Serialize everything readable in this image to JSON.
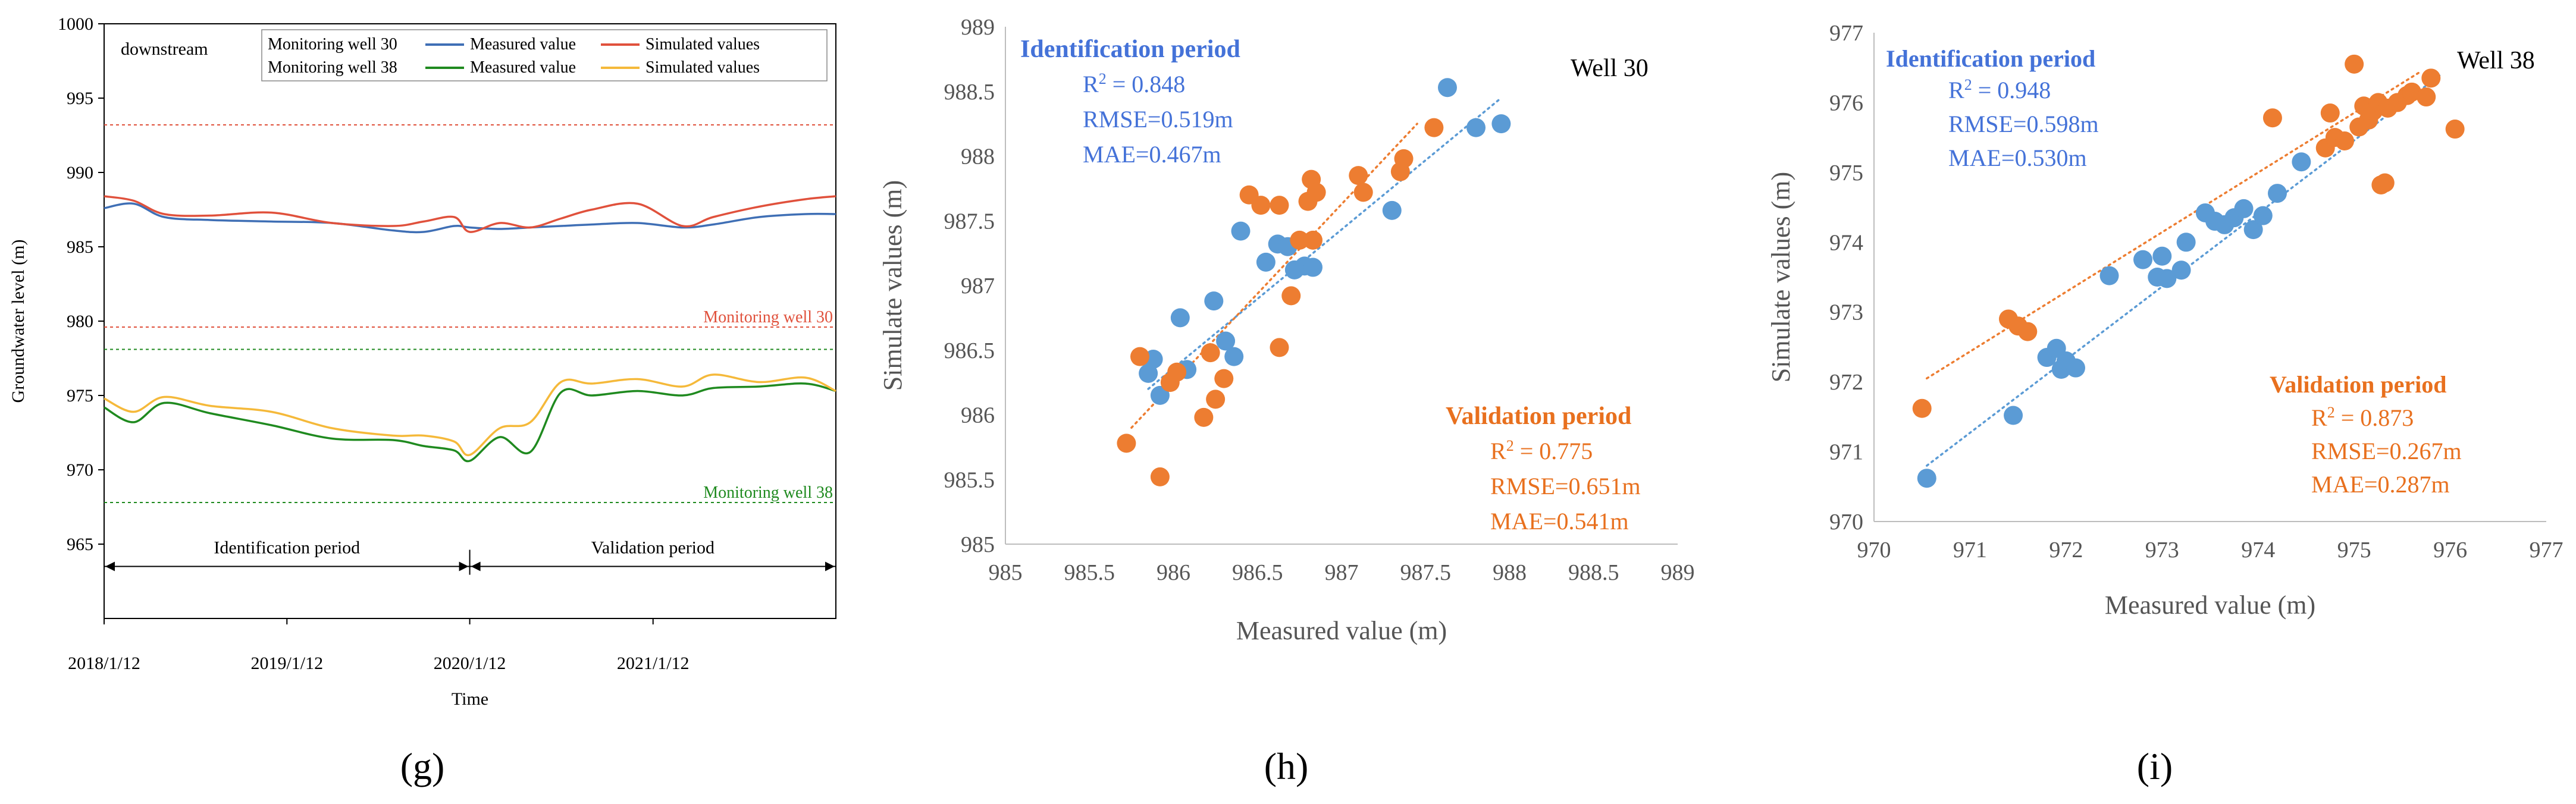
{
  "colors": {
    "measured_blue": "#3f6fb5",
    "simulated_red": "#e0513c",
    "measured_green": "#1f8a1f",
    "simulated_yellow": "#f5b93a",
    "ident_blue_text": "#4472d8",
    "valid_orange_text": "#e8701e",
    "scatter_blue": "#5b9bd5",
    "scatter_orange": "#ed7d31"
  },
  "panel_labels": [
    "(g)",
    "(h)",
    "(i)"
  ],
  "chart_data": [
    {
      "type": "line",
      "panel": "g",
      "xlabel": "Time",
      "ylabel": "Groundwater level (m)",
      "ylim": [
        960,
        1000
      ],
      "yticks": [
        "965",
        "970",
        "975",
        "980",
        "985",
        "990",
        "995",
        "1000"
      ],
      "xticks": [
        "2018/1/12",
        "2019/1/12",
        "2020/1/12",
        "2021/1/12"
      ],
      "xrange": [
        "2018/1/12",
        "2022/1/12"
      ],
      "grid": false,
      "annotation_downstream": "downstream",
      "legend": {
        "row1_label": "Monitoring well 30",
        "row2_label": "Monitoring well 38",
        "measured": "Measured value",
        "simulated": "Simulated values"
      },
      "reference_lines": [
        {
          "y": 993.2,
          "color": "#e0513c"
        },
        {
          "y": 979.6,
          "color": "#e0513c",
          "label": "Monitoring well 30"
        },
        {
          "y": 978.1,
          "color": "#1f8a1f"
        },
        {
          "y": 967.8,
          "color": "#1f8a1f",
          "label": "Monitoring well 38"
        }
      ],
      "periods": {
        "identification": "Identification period",
        "validation": "Validation period",
        "split_date": "2020/1/12",
        "arrow_y": 963.5
      },
      "series": [
        {
          "name": "Monitoring well 30 Measured value",
          "color": "#3f6fb5",
          "x": [
            "2018/1/12",
            "2018/3/12",
            "2018/5/12",
            "2018/8/12",
            "2018/12/12",
            "2019/4/12",
            "2019/8/12",
            "2019/10/12",
            "2019/12/12",
            "2020/1/12",
            "2020/3/12",
            "2020/5/12",
            "2020/7/12",
            "2020/9/12",
            "2020/12/12",
            "2021/3/12",
            "2021/5/12",
            "2021/8/12",
            "2021/11/12",
            "2022/1/12"
          ],
          "y": [
            987.6,
            987.9,
            987.0,
            986.8,
            986.7,
            986.6,
            986.1,
            986.0,
            986.4,
            986.3,
            986.2,
            986.3,
            986.4,
            986.5,
            986.6,
            986.3,
            986.5,
            987.0,
            987.2,
            987.2
          ]
        },
        {
          "name": "Monitoring well 30 Simulated values",
          "color": "#e0513c",
          "x": [
            "2018/1/12",
            "2018/3/12",
            "2018/5/12",
            "2018/8/12",
            "2018/12/12",
            "2019/4/12",
            "2019/8/12",
            "2019/10/12",
            "2019/12/12",
            "2020/1/12",
            "2020/3/12",
            "2020/5/12",
            "2020/7/12",
            "2020/9/12",
            "2020/12/12",
            "2021/3/12",
            "2021/5/12",
            "2021/8/12",
            "2021/11/12",
            "2022/1/12"
          ],
          "y": [
            988.4,
            988.1,
            987.2,
            987.1,
            987.3,
            986.6,
            986.4,
            986.7,
            987.0,
            986.0,
            986.6,
            986.3,
            986.9,
            987.5,
            987.9,
            986.4,
            987.0,
            987.7,
            988.2,
            988.4
          ]
        },
        {
          "name": "Monitoring well 38 Measured value",
          "color": "#1f8a1f",
          "x": [
            "2018/1/12",
            "2018/3/12",
            "2018/5/12",
            "2018/8/12",
            "2018/12/12",
            "2019/4/12",
            "2019/8/12",
            "2019/10/12",
            "2019/12/12",
            "2020/1/12",
            "2020/3/12",
            "2020/5/12",
            "2020/7/12",
            "2020/9/12",
            "2020/12/12",
            "2021/3/12",
            "2021/5/12",
            "2021/8/12",
            "2021/11/12",
            "2022/1/12"
          ],
          "y": [
            974.2,
            973.2,
            974.5,
            973.8,
            973.0,
            972.1,
            972.0,
            971.6,
            971.3,
            970.6,
            972.2,
            971.2,
            975.2,
            975.0,
            975.3,
            975.0,
            975.5,
            975.6,
            975.8,
            975.3
          ]
        },
        {
          "name": "Monitoring well 38 Simulated values",
          "color": "#f5b93a",
          "x": [
            "2018/1/12",
            "2018/3/12",
            "2018/5/12",
            "2018/8/12",
            "2018/12/12",
            "2019/4/12",
            "2019/8/12",
            "2019/10/12",
            "2019/12/12",
            "2020/1/12",
            "2020/3/12",
            "2020/5/12",
            "2020/7/12",
            "2020/9/12",
            "2020/12/12",
            "2021/3/12",
            "2021/5/12",
            "2021/8/12",
            "2021/11/12",
            "2022/1/12"
          ],
          "y": [
            974.8,
            973.9,
            974.9,
            974.3,
            973.9,
            972.8,
            972.3,
            972.3,
            971.9,
            971.0,
            972.8,
            973.2,
            975.9,
            975.8,
            976.1,
            975.6,
            976.4,
            975.9,
            976.2,
            975.3
          ]
        }
      ]
    },
    {
      "type": "scatter",
      "panel": "h",
      "xlabel": "Measured value (m)",
      "ylabel": "Simulate values (m)",
      "xlim": [
        985,
        989
      ],
      "ylim": [
        985,
        989
      ],
      "xticks": [
        "985",
        "985.5",
        "986",
        "986.5",
        "987",
        "987.5",
        "988",
        "988.5",
        "989"
      ],
      "yticks": [
        "985",
        "985.5",
        "986",
        "986.5",
        "987",
        "987.5",
        "988",
        "988.5",
        "989"
      ],
      "title": "Well 30",
      "identification": {
        "header": "Identification period",
        "r2": "R",
        "r2_value": " = 0.848",
        "rmse": "RMSE=0.519m",
        "mae": "MAE=0.467m"
      },
      "validation": {
        "header": "Validation period",
        "r2": "R",
        "r2_value": " = 0.775",
        "rmse": "RMSE=0.651m",
        "mae": "MAE=0.541m"
      },
      "series": [
        {
          "name": "Identification period",
          "color": "#5b9bd5",
          "trend": [
            [
              985.85,
              986.2
            ],
            [
              987.95,
              988.45
            ]
          ],
          "points": [
            [
              985.85,
              986.32
            ],
            [
              985.88,
              986.43
            ],
            [
              985.92,
              986.15
            ],
            [
              986.04,
              986.75
            ],
            [
              986.08,
              986.35
            ],
            [
              986.24,
              986.88
            ],
            [
              986.31,
              986.57
            ],
            [
              986.36,
              986.45
            ],
            [
              986.4,
              987.42
            ],
            [
              986.55,
              987.18
            ],
            [
              986.62,
              987.32
            ],
            [
              986.68,
              987.3
            ],
            [
              986.72,
              987.12
            ],
            [
              986.78,
              987.15
            ],
            [
              986.83,
              987.14
            ],
            [
              987.3,
              987.58
            ],
            [
              987.63,
              988.53
            ],
            [
              987.8,
              988.22
            ],
            [
              987.95,
              988.25
            ]
          ]
        },
        {
          "name": "Validation period",
          "color": "#ed7d31",
          "trend": [
            [
              985.75,
              985.9
            ],
            [
              987.45,
              988.25
            ]
          ],
          "points": [
            [
              985.72,
              985.78
            ],
            [
              985.8,
              986.45
            ],
            [
              985.92,
              985.52
            ],
            [
              985.98,
              986.25
            ],
            [
              986.02,
              986.33
            ],
            [
              986.18,
              985.98
            ],
            [
              986.22,
              986.48
            ],
            [
              986.25,
              986.12
            ],
            [
              986.3,
              986.28
            ],
            [
              986.45,
              987.7
            ],
            [
              986.52,
              987.62
            ],
            [
              986.63,
              987.62
            ],
            [
              986.63,
              986.52
            ],
            [
              986.7,
              986.92
            ],
            [
              986.75,
              987.35
            ],
            [
              986.8,
              987.65
            ],
            [
              986.82,
              987.82
            ],
            [
              986.83,
              987.35
            ],
            [
              986.85,
              987.72
            ],
            [
              987.1,
              987.85
            ],
            [
              987.13,
              987.72
            ],
            [
              987.35,
              987.88
            ],
            [
              987.37,
              987.98
            ],
            [
              987.55,
              988.22
            ]
          ]
        }
      ]
    },
    {
      "type": "scatter",
      "panel": "i",
      "xlabel": "Measured value (m)",
      "ylabel": "Simulate values (m)",
      "xlim": [
        970,
        977
      ],
      "ylim": [
        970,
        977
      ],
      "xticks": [
        "970",
        "971",
        "972",
        "973",
        "974",
        "975",
        "976",
        "977"
      ],
      "yticks": [
        "970",
        "971",
        "972",
        "973",
        "974",
        "975",
        "976",
        "977"
      ],
      "title": "Well 38",
      "identification": {
        "header": "Identification period",
        "r2": "R",
        "r2_value": " = 0.948",
        "rmse": "RMSE=0.598m",
        "mae": "MAE=0.530m"
      },
      "validation": {
        "header": "Validation period",
        "r2": "R",
        "r2_value": " = 0.873",
        "rmse": "RMSE=0.267m",
        "mae": "MAE=0.287m"
      },
      "series": [
        {
          "name": "Identification period",
          "color": "#5b9bd5",
          "trend": [
            [
              970.55,
              970.8
            ],
            [
              975.9,
              976.4
            ]
          ],
          "points": [
            [
              970.55,
              970.62
            ],
            [
              971.45,
              971.52
            ],
            [
              971.8,
              972.35
            ],
            [
              971.9,
              972.48
            ],
            [
              971.95,
              972.18
            ],
            [
              972.0,
              972.3
            ],
            [
              972.1,
              972.2
            ],
            [
              972.45,
              973.52
            ],
            [
              972.8,
              973.75
            ],
            [
              972.95,
              973.5
            ],
            [
              973.0,
              973.8
            ],
            [
              973.05,
              973.48
            ],
            [
              973.2,
              973.6
            ],
            [
              973.25,
              974.0
            ],
            [
              973.45,
              974.42
            ],
            [
              973.55,
              974.3
            ],
            [
              973.65,
              974.25
            ],
            [
              973.75,
              974.35
            ],
            [
              973.85,
              974.48
            ],
            [
              973.95,
              974.18
            ],
            [
              974.05,
              974.38
            ],
            [
              974.2,
              974.7
            ],
            [
              974.45,
              975.15
            ]
          ]
        },
        {
          "name": "Validation period",
          "color": "#ed7d31",
          "trend": [
            [
              970.55,
              972.05
            ],
            [
              975.7,
              976.45
            ]
          ],
          "points": [
            [
              970.5,
              971.62
            ],
            [
              971.4,
              972.9
            ],
            [
              971.5,
              972.8
            ],
            [
              971.6,
              972.72
            ],
            [
              974.15,
              975.78
            ],
            [
              974.7,
              975.35
            ],
            [
              974.75,
              975.85
            ],
            [
              974.8,
              975.5
            ],
            [
              974.9,
              975.45
            ],
            [
              975.0,
              976.55
            ],
            [
              975.05,
              975.65
            ],
            [
              975.1,
              975.95
            ],
            [
              975.15,
              975.75
            ],
            [
              975.2,
              975.88
            ],
            [
              975.25,
              976.0
            ],
            [
              975.28,
              974.82
            ],
            [
              975.32,
              974.85
            ],
            [
              975.35,
              975.92
            ],
            [
              975.45,
              976.0
            ],
            [
              975.55,
              976.1
            ],
            [
              975.6,
              976.15
            ],
            [
              975.75,
              976.08
            ],
            [
              975.8,
              976.35
            ],
            [
              976.05,
              975.62
            ]
          ]
        }
      ]
    }
  ]
}
